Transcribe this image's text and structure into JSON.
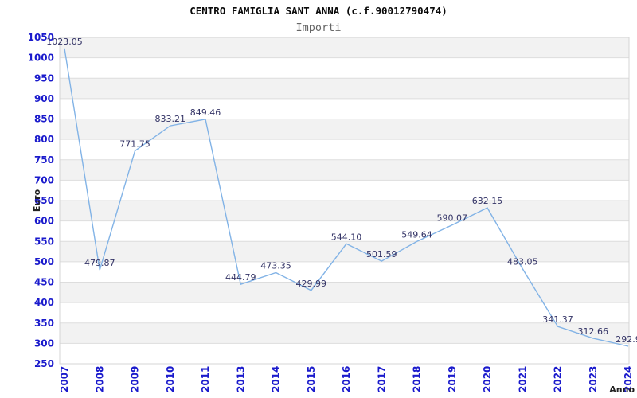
{
  "header": {
    "title": "CENTRO FAMIGLIA SANT ANNA (c.f.90012790474)",
    "subtitle": "Importi"
  },
  "chart_data": {
    "type": "line",
    "title": "CENTRO FAMIGLIA SANT ANNA (c.f.90012790474)",
    "subtitle": "Importi",
    "xlabel": "Anno",
    "ylabel": "Euro",
    "categories": [
      "2007",
      "2008",
      "2009",
      "2010",
      "2011",
      "2013",
      "2014",
      "2015",
      "2016",
      "2017",
      "2018",
      "2019",
      "2020",
      "2021",
      "2022",
      "2023",
      "2024"
    ],
    "values": [
      1023.05,
      479.87,
      771.75,
      833.21,
      849.46,
      444.79,
      473.35,
      429.99,
      544.1,
      501.59,
      549.64,
      590.07,
      632.15,
      483.05,
      341.37,
      312.66,
      292.9
    ],
    "point_labels": [
      "1023.05",
      "479.87",
      "771.75",
      "833.21",
      "849.46",
      "444.79",
      "473.35",
      "429.99",
      "544.10",
      "501.59",
      "549.64",
      "590.07",
      "632.15",
      "483.05",
      "341.37",
      "312.66",
      "292.9"
    ],
    "ylim": [
      250,
      1050
    ],
    "ytick_step": 50,
    "grid": "horizontal-alternating-bands",
    "legend": "none",
    "colors": {
      "line": "#82B3E6",
      "tick_label": "#1A1ACC",
      "point_label": "#333366",
      "band": "#F2F2F2",
      "gridline": "#DDDDDD",
      "border": "#D4D4D4",
      "title": "#0A0A0A",
      "subtitle": "#666666",
      "axis_title": "#222222",
      "background": "#FFFFFF"
    }
  }
}
